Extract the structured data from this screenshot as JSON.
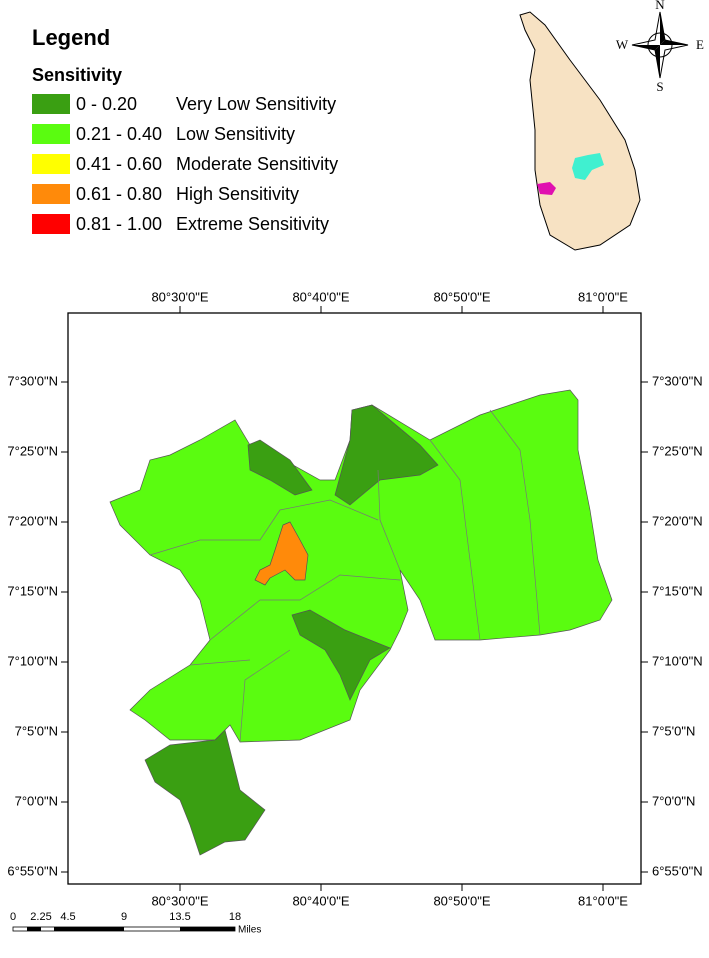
{
  "legend": {
    "title": "Legend",
    "subtitle": "Sensitivity",
    "items": [
      {
        "range": "0 - 0.20",
        "label": "Very Low Sensitivity",
        "color": "#3a9f12"
      },
      {
        "range": "0.21 - 0.40",
        "label": "Low Sensitivity",
        "color": "#5afc10"
      },
      {
        "range": "0.41 - 0.60",
        "label": "Moderate Sensitivity",
        "color": "#ffff00"
      },
      {
        "range": "0.61 - 0.80",
        "label": "High Sensitivity",
        "color": "#ff8a0a"
      },
      {
        "range": "0.81 - 1.00",
        "label": "Extreme Sensitivity",
        "color": "#ff0000"
      }
    ]
  },
  "compass": {
    "n": "N",
    "s": "S",
    "e": "E",
    "w": "W"
  },
  "map": {
    "top_labels": [
      "80°30'0\"E",
      "80°40'0\"E",
      "80°50'0\"E",
      "81°0'0\"E"
    ],
    "bottom_labels": [
      "80°30'0\"E",
      "80°40'0\"E",
      "80°50'0\"E",
      "81°0'0\"E"
    ],
    "left_labels": [
      "7°30'0\"N",
      "7°25'0\"N",
      "7°20'0\"N",
      "7°15'0\"N",
      "7°10'0\"N",
      "7°5'0\"N",
      "7°0'0\"N",
      "6°55'0\"N"
    ],
    "right_labels": [
      "7°30'0\"N",
      "7°25'0\"N",
      "7°20'0\"N",
      "7°15'0\"N",
      "7°10'0\"N",
      "7°5'0\"N",
      "7°0'0\"N",
      "6°55'0\"N"
    ]
  },
  "scale_bar": {
    "labels": [
      "0",
      "2.25",
      "4.5",
      "9",
      "13.5",
      "18"
    ],
    "unit": "Miles"
  }
}
